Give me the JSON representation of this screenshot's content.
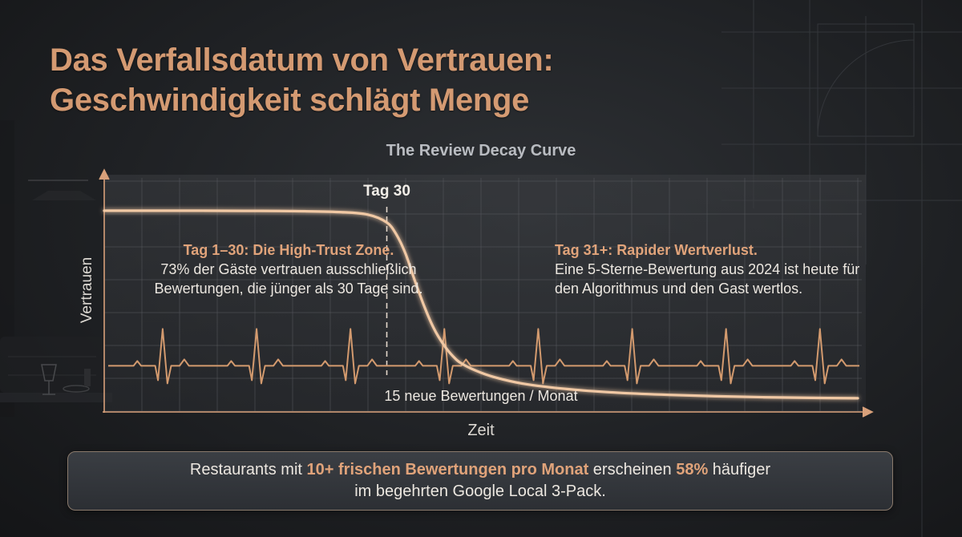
{
  "title_line1": "Das Verfallsdatum von Vertrauen:",
  "title_line2": "Geschwindigkeit schlägt Menge",
  "chart_data": {
    "type": "line",
    "title": "The Review Decay Curve",
    "xlabel": "Zeit",
    "ylabel": "Vertrauen",
    "marker": {
      "day": 30,
      "label": "Tag 30"
    },
    "series": [
      {
        "role": "trust",
        "x": [
          0,
          5,
          10,
          15,
          20,
          25,
          28,
          30,
          31,
          32,
          33,
          34,
          35,
          36,
          37,
          38,
          40,
          42,
          45,
          50,
          55,
          60,
          65,
          70,
          75,
          80
        ],
        "values": [
          98,
          98,
          98,
          97.9,
          97.8,
          97.3,
          96,
          92,
          86,
          76,
          62,
          49,
          38,
          30,
          24,
          20,
          15.5,
          12.5,
          9.5,
          6.8,
          5.2,
          4.2,
          3.5,
          3.0,
          2.7,
          2.5
        ]
      },
      {
        "role": "review-rate",
        "name": "15 neue Bewertungen / Monat",
        "pulse_count": 8,
        "baseline": 19
      }
    ],
    "xlim": [
      0,
      80
    ],
    "ylim": [
      0,
      100
    ],
    "grid": true,
    "annotations": {
      "left": {
        "head": "Tag 1–30: Die High-Trust Zone.",
        "body": "73% der Gäste vertrauen ausschließlich Bewertungen, die jünger als 30 Tage sind."
      },
      "right": {
        "head": "Tag 31+: Rapider Wertverlust.",
        "body": "Eine 5-Sterne-Bewertung aus 2024 ist heute für den Algorithmus und den Gast wertlos."
      }
    }
  },
  "footer": {
    "part1": "Restaurants mit ",
    "highlight1": "10+ frischen Bewertungen pro Monat",
    "part2": " erscheinen ",
    "highlight2": "58%",
    "part3": " häufiger",
    "line2": "im begehrten Google Local 3-Pack."
  },
  "colors": {
    "accent": "#e0a37a",
    "curve": "#f0c8a4",
    "title": "#d49a72",
    "grid": "#56585d"
  }
}
